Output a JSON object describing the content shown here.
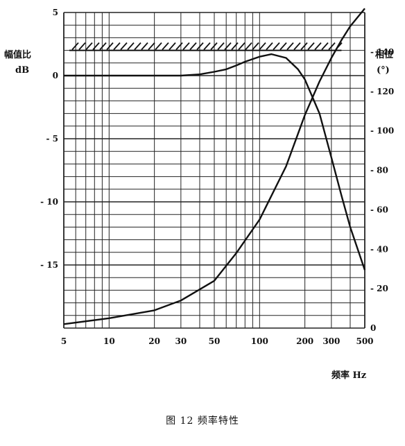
{
  "caption": "图 12   频率特性",
  "chart_data": {
    "type": "line",
    "title": "",
    "xlabel": "频率 Hz",
    "x_scale": "log",
    "xlim": [
      5,
      500
    ],
    "x_ticks": [
      5,
      10,
      20,
      30,
      50,
      100,
      200,
      300,
      500
    ],
    "y_left": {
      "label": "幅值比",
      "unit": "dB",
      "ylim": [
        -20,
        5
      ],
      "ticks": [
        {
          "value": 5,
          "label": "5"
        },
        {
          "value": 0,
          "label": "0"
        },
        {
          "value": -5,
          "label": "- 5"
        },
        {
          "value": -10,
          "label": "- 10"
        },
        {
          "value": -15,
          "label": "- 15"
        }
      ]
    },
    "y_right": {
      "label": "相位",
      "unit": "(°)",
      "ylim": [
        0,
        160
      ],
      "ticks": [
        {
          "value": 0,
          "label": "0"
        },
        {
          "value": 20,
          "label": "- 20"
        },
        {
          "value": 40,
          "label": "- 40"
        },
        {
          "value": 60,
          "label": "- 60"
        },
        {
          "value": 80,
          "label": "- 80"
        },
        {
          "value": 100,
          "label": "- 100"
        },
        {
          "value": 120,
          "label": "- 120"
        },
        {
          "value": 140,
          "label": "- 140"
        }
      ]
    },
    "hatched_limit": {
      "value_db": 2,
      "x_from": 5,
      "x_to": 350
    },
    "grid": true,
    "series": [
      {
        "axis": "left",
        "x": [
          5,
          10,
          20,
          30,
          40,
          50,
          60,
          70,
          80,
          100,
          120,
          150,
          180,
          200,
          250,
          300,
          350,
          400,
          500
        ],
        "y": [
          0,
          0,
          0,
          0,
          0.1,
          0.3,
          0.5,
          0.8,
          1.1,
          1.5,
          1.7,
          1.4,
          0.5,
          -0.3,
          -3.0,
          -6.5,
          -9.5,
          -12.0,
          -15.4
        ]
      },
      {
        "axis": "right",
        "x": [
          5,
          10,
          20,
          30,
          50,
          70,
          100,
          150,
          200,
          250,
          300,
          350,
          400,
          500
        ],
        "y": [
          2,
          5,
          9,
          14,
          24,
          38,
          55,
          82,
          108,
          125,
          137,
          146,
          153,
          162
        ]
      }
    ]
  }
}
